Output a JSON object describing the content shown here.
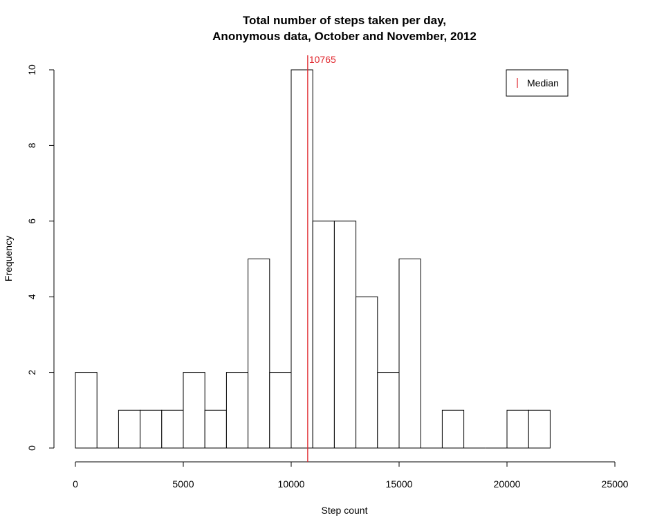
{
  "chart_data": {
    "type": "bar",
    "title": "Total number of steps taken per day,",
    "subtitle": "Anonymous data, October and November, 2012",
    "xlabel": "Step count",
    "ylabel": "Frequency",
    "bin_width": 1000,
    "bins": [
      {
        "start": 0,
        "end": 1000,
        "count": 2
      },
      {
        "start": 1000,
        "end": 2000,
        "count": 0
      },
      {
        "start": 2000,
        "end": 3000,
        "count": 1
      },
      {
        "start": 3000,
        "end": 4000,
        "count": 1
      },
      {
        "start": 4000,
        "end": 5000,
        "count": 1
      },
      {
        "start": 5000,
        "end": 6000,
        "count": 2
      },
      {
        "start": 6000,
        "end": 7000,
        "count": 1
      },
      {
        "start": 7000,
        "end": 8000,
        "count": 2
      },
      {
        "start": 8000,
        "end": 9000,
        "count": 5
      },
      {
        "start": 9000,
        "end": 10000,
        "count": 2
      },
      {
        "start": 10000,
        "end": 11000,
        "count": 10
      },
      {
        "start": 11000,
        "end": 12000,
        "count": 6
      },
      {
        "start": 12000,
        "end": 13000,
        "count": 6
      },
      {
        "start": 13000,
        "end": 14000,
        "count": 4
      },
      {
        "start": 14000,
        "end": 15000,
        "count": 2
      },
      {
        "start": 15000,
        "end": 16000,
        "count": 5
      },
      {
        "start": 16000,
        "end": 17000,
        "count": 0
      },
      {
        "start": 17000,
        "end": 18000,
        "count": 1
      },
      {
        "start": 18000,
        "end": 19000,
        "count": 0
      },
      {
        "start": 19000,
        "end": 20000,
        "count": 0
      },
      {
        "start": 20000,
        "end": 21000,
        "count": 1
      },
      {
        "start": 21000,
        "end": 22000,
        "count": 1
      }
    ],
    "xlim": [
      0,
      25000
    ],
    "ylim": [
      0,
      10
    ],
    "x_ticks": [
      0,
      5000,
      10000,
      15000,
      20000,
      25000
    ],
    "x_tick_labels": [
      "0",
      "5000",
      "10000",
      "15000",
      "20000",
      "25000"
    ],
    "y_ticks": [
      0,
      2,
      4,
      6,
      8,
      10
    ],
    "y_tick_labels": [
      "0",
      "2",
      "4",
      "6",
      "8",
      "10"
    ],
    "median": {
      "value": 10765,
      "label": "10765",
      "color": "#e0242b"
    },
    "legend": {
      "placement": "top-right",
      "entries": [
        {
          "label": "Median",
          "color": "#e0242b",
          "symbol": "|"
        }
      ]
    },
    "grid": false,
    "bar_fill": "#ffffff",
    "bar_stroke": "#000000"
  }
}
